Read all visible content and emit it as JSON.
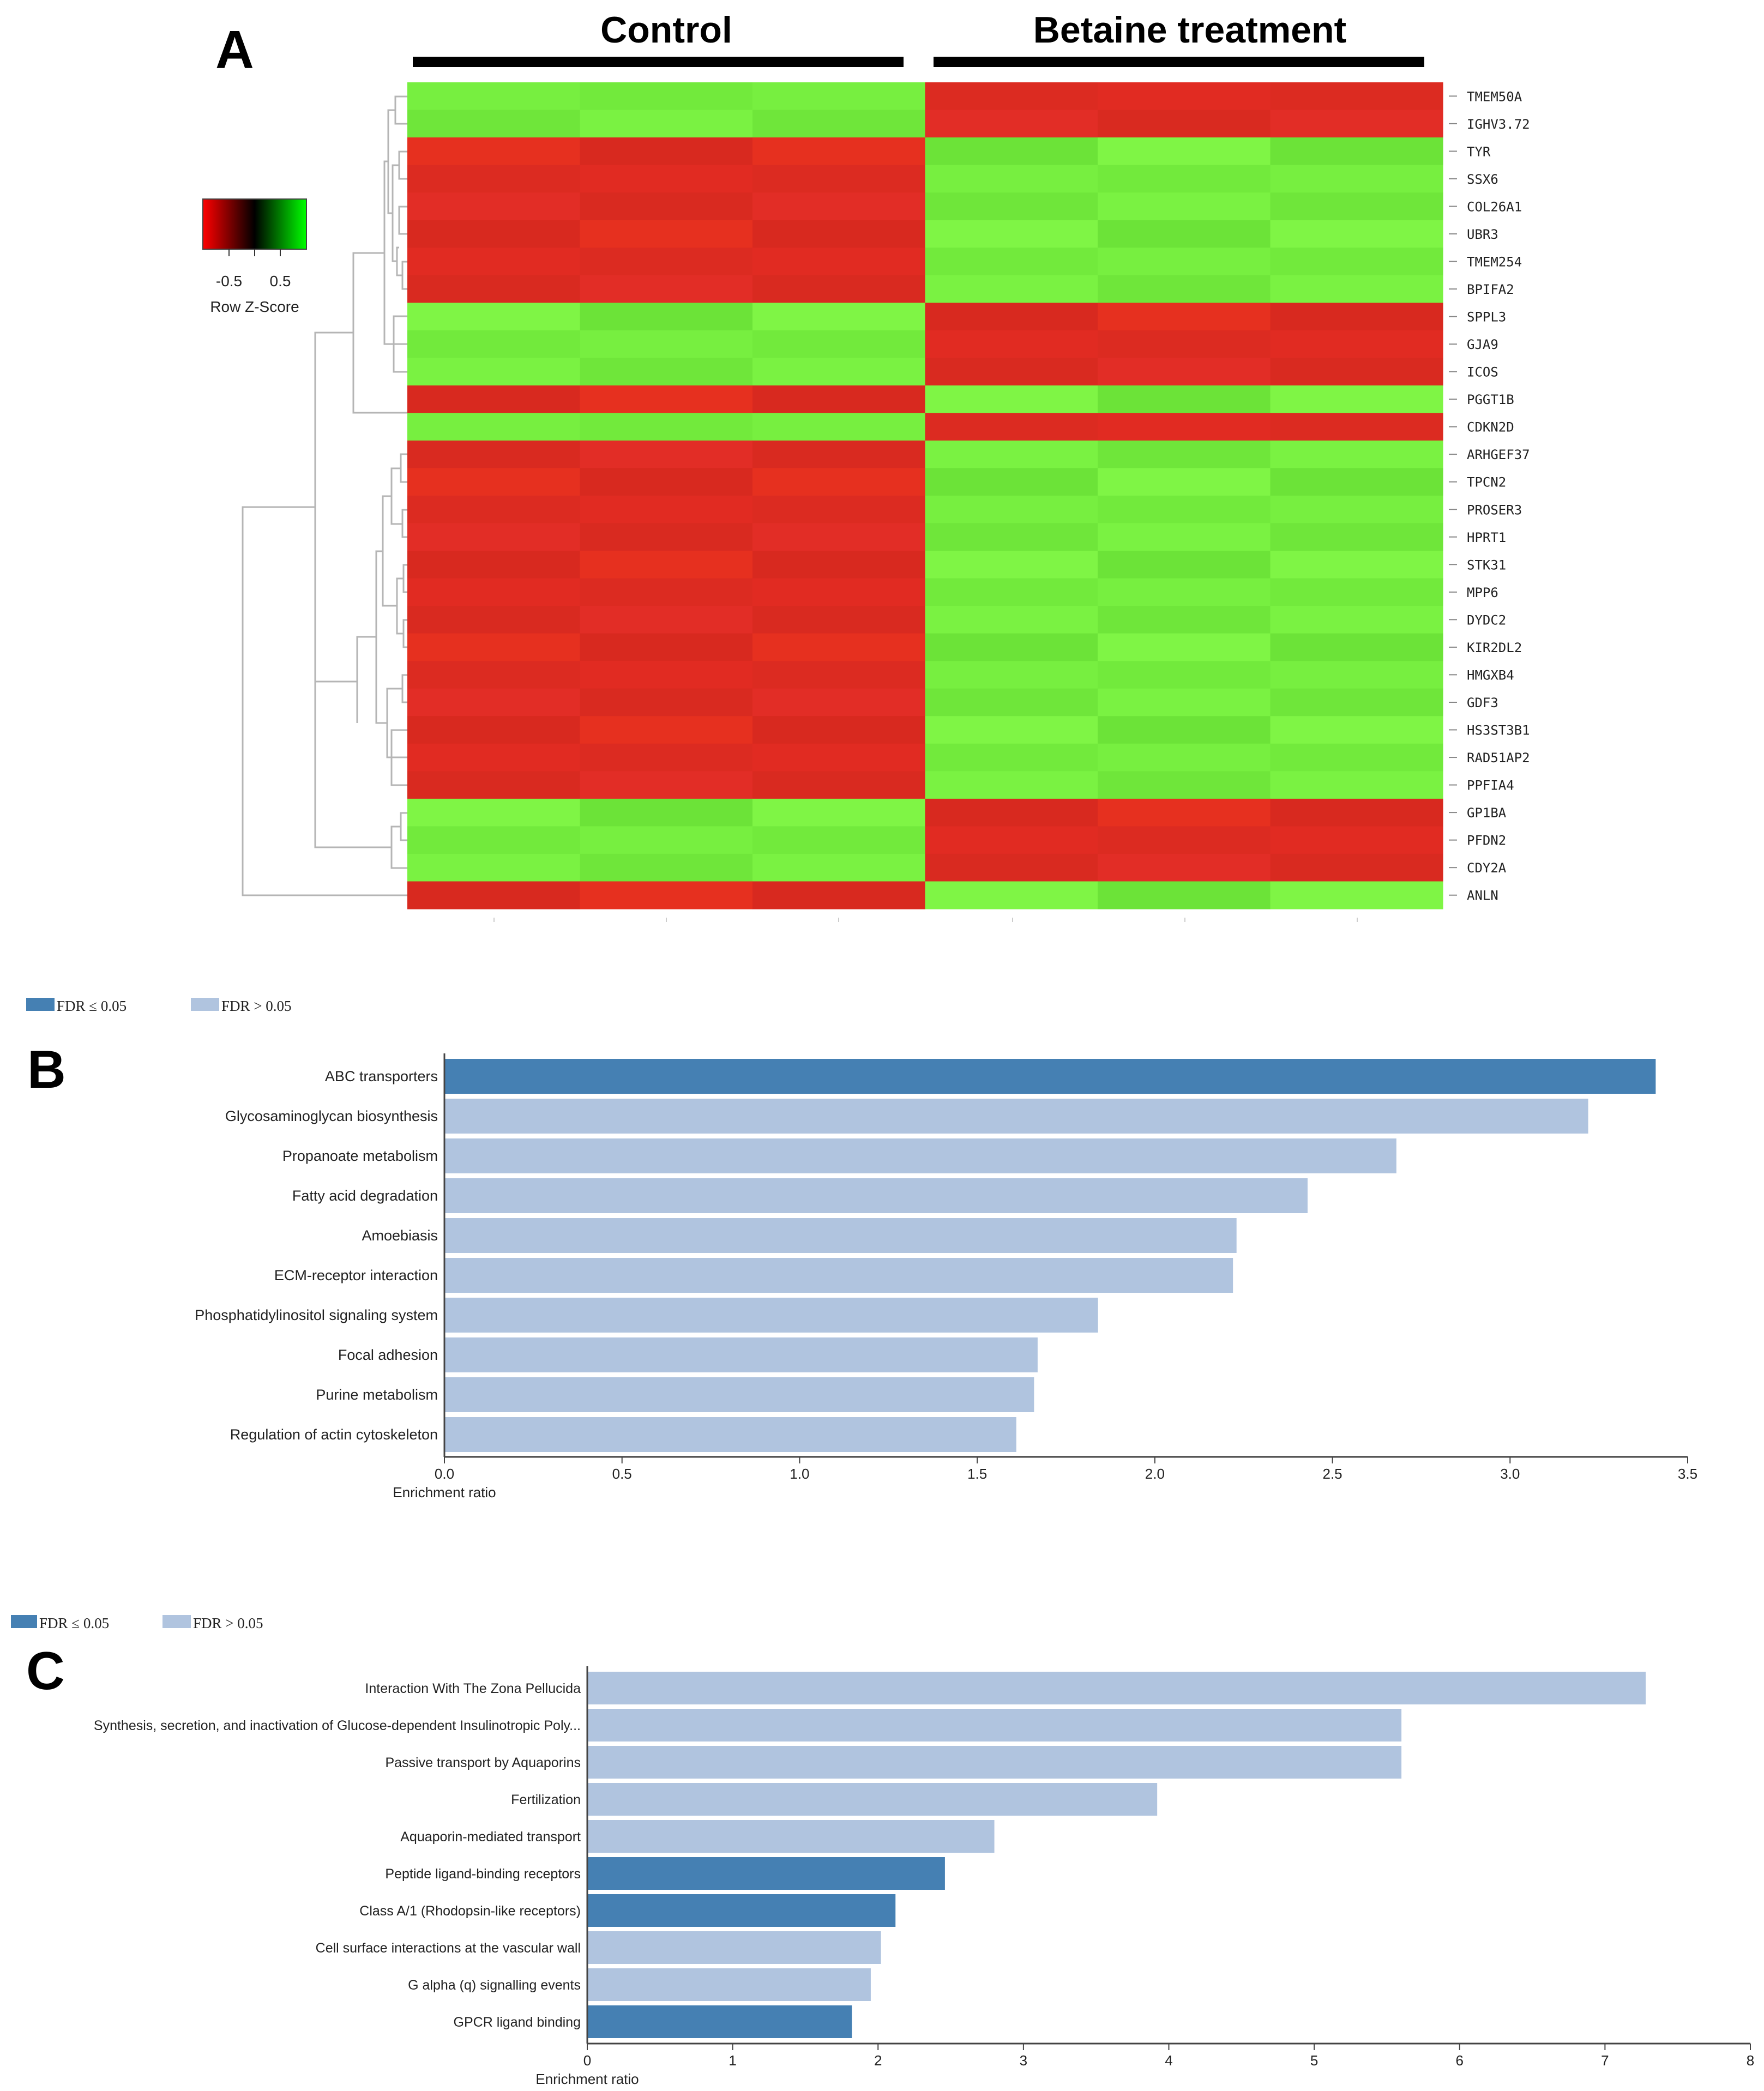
{
  "panels": {
    "a": "A",
    "b": "B",
    "c": "C"
  },
  "colors": {
    "dark_blue": "#4580b3",
    "light_blue": "#b0c4df",
    "red": "#e02b21",
    "green": "#75f03f"
  },
  "heatmap": {
    "group_left": "Control",
    "group_right": "Betaine treatment",
    "scale_labels": [
      "-0.5",
      "0.5"
    ],
    "scale_title": "Row Z-Score",
    "genes": [
      "TMEM50A",
      "IGHV3.72",
      "TYR",
      "SSX6",
      "COL26A1",
      "UBR3",
      "TMEM254",
      "BPIFA2",
      "SPPL3",
      "GJA9",
      "ICOS",
      "PGGT1B",
      "CDKN2D",
      "ARHGEF37",
      "TPCN2",
      "PROSER3",
      "HPRT1",
      "STK31",
      "MPP6",
      "DYDC2",
      "KIR2DL2",
      "HMGXB4",
      "GDF3",
      "HS3ST3B1",
      "RAD51AP2",
      "PPFIA4",
      "GP1BA",
      "PFDN2",
      "CDY2A",
      "ANLN"
    ],
    "control_high": [
      true,
      true,
      false,
      false,
      false,
      false,
      false,
      false,
      true,
      true,
      true,
      false,
      true,
      false,
      false,
      false,
      false,
      false,
      false,
      false,
      false,
      false,
      false,
      false,
      false,
      false,
      true,
      true,
      true,
      false
    ]
  },
  "legend": {
    "sig": "FDR ≤ 0.05",
    "nonsig": "FDR > 0.05"
  },
  "chart_data": [
    {
      "type": "bar",
      "orientation": "horizontal",
      "panel": "B",
      "categories": [
        "ABC transporters",
        "Glycosaminoglycan biosynthesis",
        "Propanoate metabolism",
        "Fatty acid degradation",
        "Amoebiasis",
        "ECM-receptor interaction",
        "Phosphatidylinositol signaling system",
        "Focal adhesion",
        "Purine metabolism",
        "Regulation of actin cytoskeleton"
      ],
      "values": [
        3.41,
        3.22,
        2.68,
        2.43,
        2.23,
        2.22,
        1.84,
        1.67,
        1.66,
        1.61
      ],
      "significant": [
        true,
        false,
        false,
        false,
        false,
        false,
        false,
        false,
        false,
        false
      ],
      "xlabel": "Enrichment ratio",
      "xlim": [
        0,
        3.5
      ],
      "ticks": [
        "0.0",
        "0.5",
        "1.0",
        "1.5",
        "2.0",
        "2.5",
        "3.0",
        "3.5"
      ]
    },
    {
      "type": "bar",
      "orientation": "horizontal",
      "panel": "C",
      "categories": [
        "Interaction With The Zona Pellucida",
        "Synthesis, secretion, and inactivation of Glucose-dependent Insulinotropic Poly...",
        "Passive transport by Aquaporins",
        "Fertilization",
        "Aquaporin-mediated transport",
        "Peptide ligand-binding receptors",
        "Class A/1 (Rhodopsin-like receptors)",
        "Cell surface interactions at the vascular wall",
        "G alpha (q) signalling events",
        "GPCR ligand binding"
      ],
      "values": [
        7.28,
        5.6,
        5.6,
        3.92,
        2.8,
        2.46,
        2.12,
        2.02,
        1.95,
        1.82
      ],
      "significant": [
        false,
        false,
        false,
        false,
        false,
        true,
        true,
        false,
        false,
        true
      ],
      "xlabel": "Enrichment ratio",
      "xlim": [
        0,
        8
      ],
      "ticks": [
        "0",
        "1",
        "2",
        "3",
        "4",
        "5",
        "6",
        "7",
        "8"
      ]
    }
  ]
}
